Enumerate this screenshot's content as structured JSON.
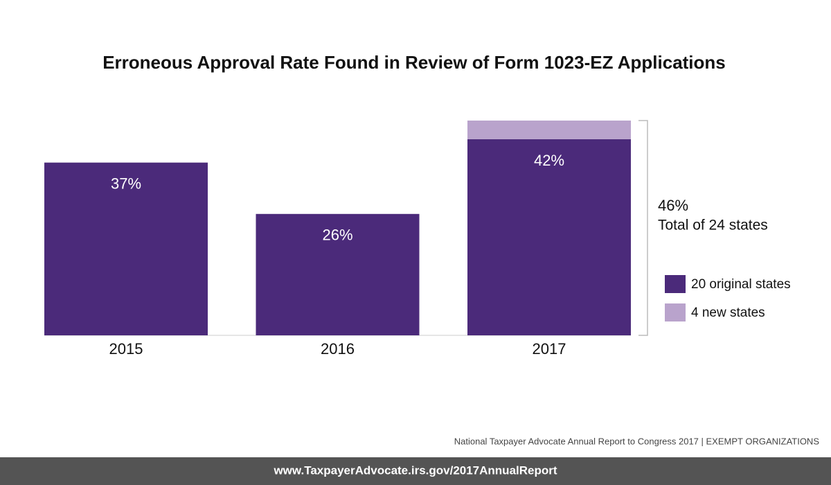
{
  "chart_data": {
    "type": "stacked-bar",
    "title": "Erroneous Approval Rate Found in Review of Form 1023-EZ Applications",
    "categories": [
      "2015",
      "2016",
      "2017"
    ],
    "series": [
      {
        "name": "20 original states",
        "color": "#4b2a7a",
        "values": [
          37,
          26,
          42
        ],
        "value_labels": [
          "37%",
          "26%",
          "42%"
        ]
      },
      {
        "name": "4 new states",
        "color": "#b9a3cc",
        "values": [
          null,
          null,
          4
        ]
      }
    ],
    "annotations": [
      "46%",
      "Total of 24 states"
    ],
    "source": "National Taxpayer Advocate Annual Report to Congress 2017 | EXEMPT ORGANIZATIONS",
    "footer": "www.TaxpayerAdvocate.irs.gov/2017AnnualReport"
  }
}
